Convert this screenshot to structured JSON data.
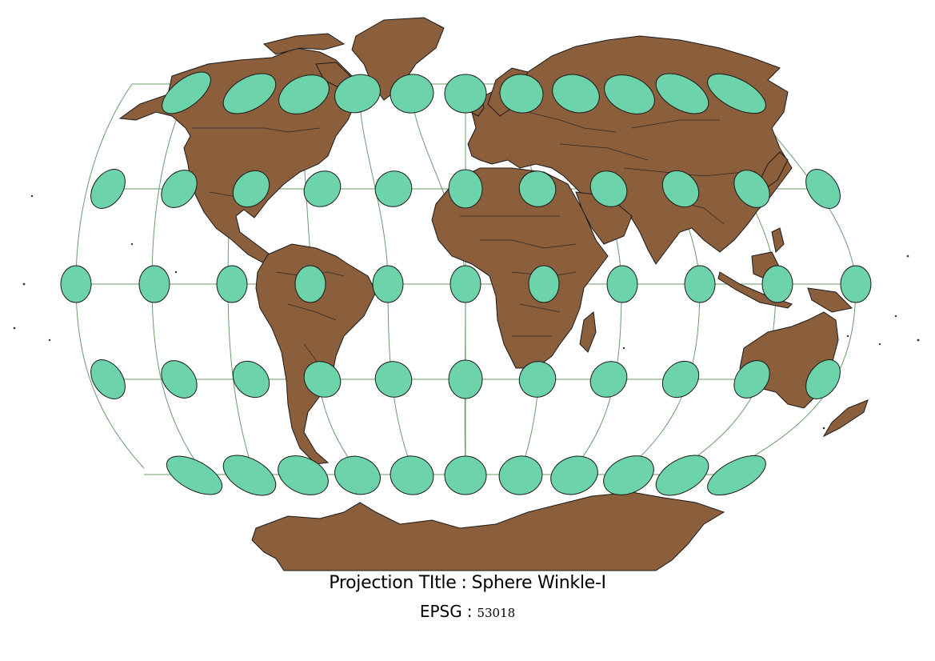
{
  "map": {
    "projection_label": "Projection TItle",
    "projection_name": "Sphere Winkle-I",
    "epsg_label": "EPSG",
    "epsg_code": "53018",
    "separator": ":",
    "colors": {
      "land": "#8b5e3c",
      "tissot_ellipse": "#6dd3aa",
      "graticule": "#6a9a6a",
      "background": "#ffffff"
    }
  }
}
